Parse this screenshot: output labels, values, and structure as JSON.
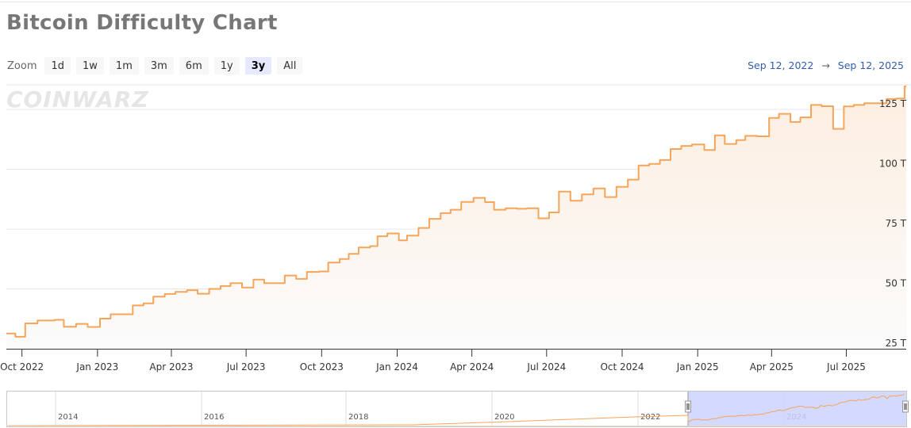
{
  "page": {
    "title": "Bitcoin Difficulty Chart",
    "watermark": "COINWARZ"
  },
  "toolbar": {
    "zoom_label": "Zoom",
    "buttons": [
      {
        "label": "1d",
        "active": false
      },
      {
        "label": "1w",
        "active": false
      },
      {
        "label": "1m",
        "active": false
      },
      {
        "label": "3m",
        "active": false
      },
      {
        "label": "6m",
        "active": false
      },
      {
        "label": "1y",
        "active": false
      },
      {
        "label": "3y",
        "active": true
      },
      {
        "label": "All",
        "active": false
      }
    ]
  },
  "range": {
    "from": "Sep 12, 2022",
    "arrow": "→",
    "to": "Sep 12, 2025"
  },
  "colors": {
    "line": "#f5a55a",
    "fill_top": "#fdeee0",
    "fill_bottom": "#fbfbfb",
    "grid": "#e6e6e6",
    "navigator_mask": "#ccd2ff"
  },
  "chart_data": {
    "type": "line",
    "title": "Bitcoin Difficulty Chart",
    "xlabel": "",
    "ylabel": "",
    "x_range": [
      "2022-09-12",
      "2025-09-12"
    ],
    "ylim": [
      25,
      135
    ],
    "y_unit": "T",
    "y_ticks": [
      25,
      50,
      75,
      100,
      125
    ],
    "y_tick_labels": [
      "25 T",
      "50 T",
      "75 T",
      "100 T",
      "125 T"
    ],
    "x_ticks": [
      "Oct 2022",
      "Jan 2023",
      "Apr 2023",
      "Jul 2023",
      "Oct 2023",
      "Jan 2024",
      "Apr 2024",
      "Jul 2024",
      "Oct 2024",
      "Jan 2025",
      "Apr 2025",
      "Jul 2025"
    ],
    "grid": true,
    "legend": "none",
    "series": [
      {
        "x": [
          "2022-09-12",
          "2022-09-23",
          "2022-10-05",
          "2022-10-20",
          "2022-10-31",
          "2022-11-10",
          "2022-11-21",
          "2022-12-06",
          "2022-12-20",
          "2023-01-04",
          "2023-01-17",
          "2023-01-31",
          "2023-02-13",
          "2023-02-26",
          "2023-03-10",
          "2023-03-24",
          "2023-04-06",
          "2023-04-20",
          "2023-05-03",
          "2023-05-17",
          "2023-05-31",
          "2023-06-12",
          "2023-06-26",
          "2023-07-10",
          "2023-07-23",
          "2023-08-03",
          "2023-08-17",
          "2023-08-31",
          "2023-09-13",
          "2023-09-28",
          "2023-10-09",
          "2023-10-23",
          "2023-11-03",
          "2023-11-15",
          "2023-11-29",
          "2023-12-08",
          "2023-12-20",
          "2024-01-03",
          "2024-01-13",
          "2024-01-27",
          "2024-02-09",
          "2024-02-23",
          "2024-03-06",
          "2024-03-19",
          "2024-04-03",
          "2024-04-17",
          "2024-04-28",
          "2024-05-12",
          "2024-05-26",
          "2024-06-07",
          "2024-06-21",
          "2024-07-04",
          "2024-07-16",
          "2024-07-30",
          "2024-08-13",
          "2024-08-27",
          "2024-09-10",
          "2024-09-24",
          "2024-10-08",
          "2024-10-21",
          "2024-11-03",
          "2024-11-16",
          "2024-11-29",
          "2024-12-12",
          "2024-12-25",
          "2025-01-09",
          "2025-01-22",
          "2025-02-03",
          "2025-02-17",
          "2025-02-28",
          "2025-03-14",
          "2025-03-29",
          "2025-04-10",
          "2025-04-24",
          "2025-05-06",
          "2025-05-19",
          "2025-06-01",
          "2025-06-15",
          "2025-06-28",
          "2025-07-10",
          "2025-07-23",
          "2025-08-04",
          "2025-08-19",
          "2025-08-31",
          "2025-09-10"
        ],
        "values": [
          31.4,
          30.0,
          35.6,
          36.8,
          36.8,
          37.1,
          34.2,
          35.4,
          34.1,
          37.6,
          39.4,
          39.4,
          43.1,
          44.0,
          46.8,
          47.9,
          48.8,
          49.5,
          48.0,
          50.0,
          51.2,
          52.4,
          50.6,
          53.9,
          52.4,
          52.4,
          55.6,
          54.2,
          57.1,
          57.3,
          61.0,
          62.5,
          64.7,
          67.3,
          67.9,
          72.0,
          73.2,
          70.3,
          72.3,
          75.5,
          79.3,
          81.7,
          83.1,
          86.4,
          88.1,
          86.3,
          83.1,
          83.7,
          83.5,
          83.7,
          79.5,
          82.0,
          90.7,
          86.9,
          89.5,
          92.0,
          88.4,
          92.7,
          95.7,
          101.6,
          102.3,
          103.9,
          108.5,
          109.8,
          110.4,
          108.1,
          114.2,
          110.6,
          112.2,
          114.0,
          113.8,
          121.5,
          123.2,
          119.8,
          121.7,
          126.9,
          126.4,
          116.9,
          126.3,
          126.9,
          127.6,
          127.6,
          129.4,
          129.6,
          134.7
        ]
      }
    ]
  },
  "navigator": {
    "year_labels": [
      "2014",
      "2016",
      "2018",
      "2020",
      "2022",
      "2024"
    ]
  }
}
